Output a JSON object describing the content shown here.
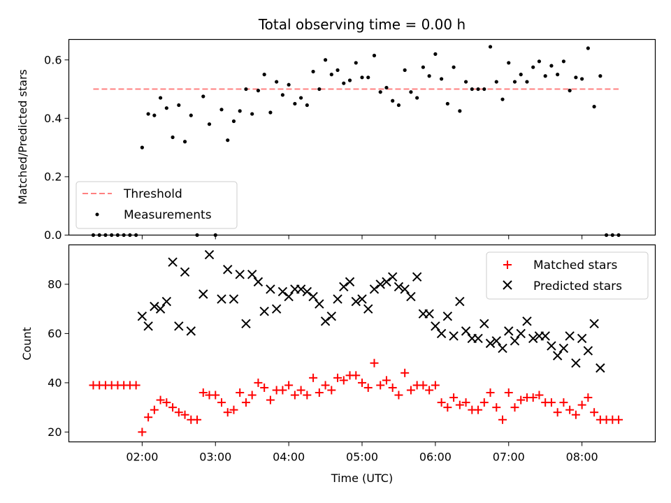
{
  "chart_data": [
    {
      "type": "scatter",
      "title": "Total observing time = 0.00 h",
      "xlabel": "",
      "ylabel": "Matched/Predicted stars",
      "xlim": [
        "01:00",
        "09:00"
      ],
      "ylim": [
        0,
        0.67
      ],
      "yticks": [
        "0.0",
        "0.2",
        "0.4",
        "0.6"
      ],
      "legend_position": "lower-left",
      "threshold": {
        "name": "Threshold",
        "value": 0.5,
        "x_range": [
          "01:20",
          "08:30"
        ],
        "color": "#ff8080",
        "style": "dashed"
      },
      "series": [
        {
          "name": "Measurements",
          "color": "#000000",
          "marker": "dot",
          "x": [
            "01:20",
            "01:25",
            "01:30",
            "01:35",
            "01:40",
            "01:45",
            "01:50",
            "01:55",
            "02:00",
            "02:05",
            "02:10",
            "02:15",
            "02:20",
            "02:25",
            "02:30",
            "02:35",
            "02:40",
            "02:45",
            "02:50",
            "02:55",
            "03:00",
            "03:05",
            "03:10",
            "03:15",
            "03:20",
            "03:25",
            "03:30",
            "03:35",
            "03:40",
            "03:45",
            "03:50",
            "03:55",
            "04:00",
            "04:05",
            "04:10",
            "04:15",
            "04:20",
            "04:25",
            "04:30",
            "04:35",
            "04:40",
            "04:45",
            "04:50",
            "04:55",
            "05:00",
            "05:05",
            "05:10",
            "05:15",
            "05:20",
            "05:25",
            "05:30",
            "05:35",
            "05:40",
            "05:45",
            "05:50",
            "05:55",
            "06:00",
            "06:05",
            "06:10",
            "06:15",
            "06:20",
            "06:25",
            "06:30",
            "06:35",
            "06:40",
            "06:45",
            "06:50",
            "06:55",
            "07:00",
            "07:05",
            "07:10",
            "07:15",
            "07:20",
            "07:25",
            "07:30",
            "07:35",
            "07:40",
            "07:45",
            "07:50",
            "07:55",
            "08:00",
            "08:05",
            "08:10",
            "08:15",
            "08:20",
            "08:25",
            "08:30"
          ],
          "y": [
            0,
            0,
            0,
            0,
            0,
            0,
            0,
            0,
            0.3,
            0.415,
            0.41,
            0.47,
            0.435,
            0.335,
            0.445,
            0.32,
            0.41,
            0,
            0.475,
            0.38,
            0,
            0.43,
            0.325,
            0.39,
            0.425,
            0.5,
            0.415,
            0.495,
            0.55,
            0.42,
            0.525,
            0.48,
            0.515,
            0.45,
            0.47,
            0.445,
            0.56,
            0.5,
            0.6,
            0.55,
            0.565,
            0.52,
            0.53,
            0.59,
            0.54,
            0.54,
            0.615,
            0.49,
            0.505,
            0.46,
            0.445,
            0.565,
            0.49,
            0.47,
            0.575,
            0.545,
            0.62,
            0.535,
            0.45,
            0.575,
            0.425,
            0.525,
            0.5,
            0.5,
            0.5,
            0.645,
            0.525,
            0.465,
            0.59,
            0.525,
            0.55,
            0.525,
            0.575,
            0.595,
            0.545,
            0.58,
            0.55,
            0.595,
            0.495,
            0.54,
            0.535,
            0.64,
            0.44,
            0.545,
            0,
            0,
            0
          ]
        }
      ]
    },
    {
      "type": "scatter",
      "title": "",
      "xlabel": "Time (UTC)",
      "ylabel": "Count",
      "xlim": [
        "01:00",
        "09:00"
      ],
      "ylim": [
        16,
        96
      ],
      "yticks": [
        "20",
        "40",
        "60",
        "80"
      ],
      "xticks": [
        "02:00",
        "03:00",
        "04:00",
        "05:00",
        "06:00",
        "07:00",
        "08:00"
      ],
      "legend_position": "upper-right",
      "series": [
        {
          "name": "Matched stars",
          "color": "#ff0000",
          "marker": "plus",
          "x": [
            "01:20",
            "01:25",
            "01:30",
            "01:35",
            "01:40",
            "01:45",
            "01:50",
            "01:55",
            "02:00",
            "02:05",
            "02:10",
            "02:15",
            "02:20",
            "02:25",
            "02:30",
            "02:35",
            "02:40",
            "02:45",
            "02:50",
            "02:55",
            "03:00",
            "03:05",
            "03:10",
            "03:15",
            "03:20",
            "03:25",
            "03:30",
            "03:35",
            "03:40",
            "03:45",
            "03:50",
            "03:55",
            "04:00",
            "04:05",
            "04:10",
            "04:15",
            "04:20",
            "04:25",
            "04:30",
            "04:35",
            "04:40",
            "04:45",
            "04:50",
            "04:55",
            "05:00",
            "05:05",
            "05:10",
            "05:15",
            "05:20",
            "05:25",
            "05:30",
            "05:35",
            "05:40",
            "05:45",
            "05:50",
            "05:55",
            "06:00",
            "06:05",
            "06:10",
            "06:15",
            "06:20",
            "06:25",
            "06:30",
            "06:35",
            "06:40",
            "06:45",
            "06:50",
            "06:55",
            "07:00",
            "07:05",
            "07:10",
            "07:15",
            "07:20",
            "07:25",
            "07:30",
            "07:35",
            "07:40",
            "07:45",
            "07:50",
            "07:55",
            "08:00",
            "08:05",
            "08:10",
            "08:15",
            "08:20",
            "08:25",
            "08:30"
          ],
          "y": [
            39,
            39,
            39,
            39,
            39,
            39,
            39,
            39,
            20,
            26,
            29,
            33,
            32,
            30,
            28,
            27,
            25,
            25,
            36,
            35,
            35,
            32,
            28,
            29,
            36,
            32,
            35,
            40,
            38,
            33,
            37,
            37,
            39,
            35,
            37,
            35,
            42,
            36,
            39,
            37,
            42,
            41,
            43,
            43,
            40,
            38,
            48,
            39,
            41,
            38,
            35,
            44,
            37,
            39,
            39,
            37,
            39,
            32,
            30,
            34,
            31,
            32,
            29,
            29,
            32,
            36,
            30,
            25,
            36,
            30,
            33,
            34,
            34,
            35,
            32,
            32,
            28,
            32,
            29,
            27,
            31,
            34,
            28,
            25,
            25,
            25,
            25
          ]
        },
        {
          "name": "Predicted stars",
          "color": "#000000",
          "marker": "x",
          "x": [
            "02:00",
            "02:05",
            "02:10",
            "02:15",
            "02:20",
            "02:25",
            "02:30",
            "02:35",
            "02:40",
            "02:50",
            "02:55",
            "03:05",
            "03:10",
            "03:15",
            "03:20",
            "03:25",
            "03:30",
            "03:35",
            "03:40",
            "03:45",
            "03:50",
            "03:55",
            "04:00",
            "04:05",
            "04:10",
            "04:15",
            "04:20",
            "04:25",
            "04:30",
            "04:35",
            "04:40",
            "04:45",
            "04:50",
            "04:55",
            "05:00",
            "05:05",
            "05:10",
            "05:15",
            "05:20",
            "05:25",
            "05:30",
            "05:35",
            "05:40",
            "05:45",
            "05:50",
            "05:55",
            "06:00",
            "06:05",
            "06:10",
            "06:15",
            "06:20",
            "06:25",
            "06:30",
            "06:35",
            "06:40",
            "06:45",
            "06:50",
            "06:55",
            "07:00",
            "07:05",
            "07:10",
            "07:15",
            "07:20",
            "07:25",
            "07:30",
            "07:35",
            "07:40",
            "07:45",
            "07:50",
            "07:55",
            "08:00",
            "08:05",
            "08:10",
            "08:15"
          ],
          "y": [
            67,
            63,
            71,
            70,
            73,
            89,
            63,
            85,
            61,
            76,
            92,
            74,
            86,
            74,
            84,
            64,
            84,
            81,
            69,
            78,
            70,
            77,
            75,
            78,
            78,
            77,
            75,
            72,
            65,
            67,
            74,
            79,
            81,
            73,
            74,
            70,
            78,
            80,
            81,
            83,
            79,
            78,
            75,
            83,
            68,
            68,
            63,
            60,
            67,
            59,
            73,
            61,
            58,
            58,
            64,
            56,
            57,
            54,
            61,
            57,
            60,
            65,
            58,
            59,
            59,
            55,
            51,
            54,
            59,
            48,
            58,
            53,
            64,
            46
          ]
        }
      ]
    }
  ]
}
